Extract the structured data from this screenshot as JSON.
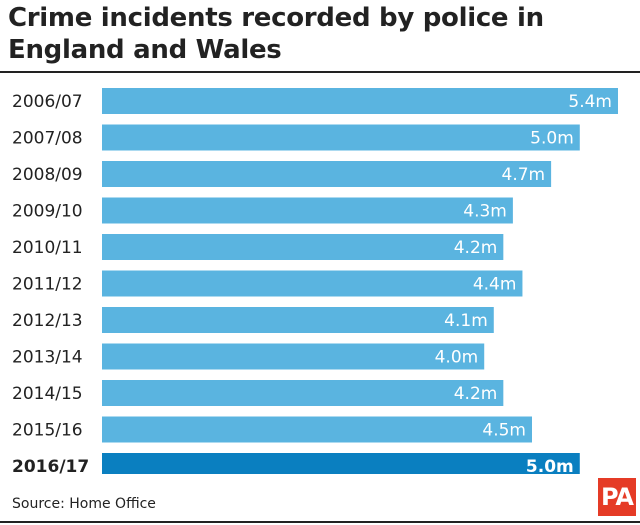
{
  "title": "Crime incidents recorded by police in England and Wales",
  "source": "Source: Home Office",
  "logo": "PA",
  "colors": {
    "bar": "#5ab4e0",
    "highlight_bar": "#0a7fc0",
    "logo": "#e53b26"
  },
  "chart_data": {
    "type": "bar",
    "orientation": "horizontal",
    "unit": "m",
    "categories": [
      "2006/07",
      "2007/08",
      "2008/09",
      "2009/10",
      "2010/11",
      "2011/12",
      "2012/13",
      "2013/14",
      "2014/15",
      "2015/16",
      "2016/17"
    ],
    "values": [
      5.4,
      5.0,
      4.7,
      4.3,
      4.2,
      4.4,
      4.1,
      4.0,
      4.2,
      4.5,
      5.0
    ],
    "labels": [
      "5.4m",
      "5.0m",
      "4.7m",
      "4.3m",
      "4.2m",
      "4.4m",
      "4.1m",
      "4.0m",
      "4.2m",
      "4.5m",
      "5.0m"
    ],
    "highlight": "2016/17",
    "xlim": [
      0,
      5.4
    ]
  }
}
